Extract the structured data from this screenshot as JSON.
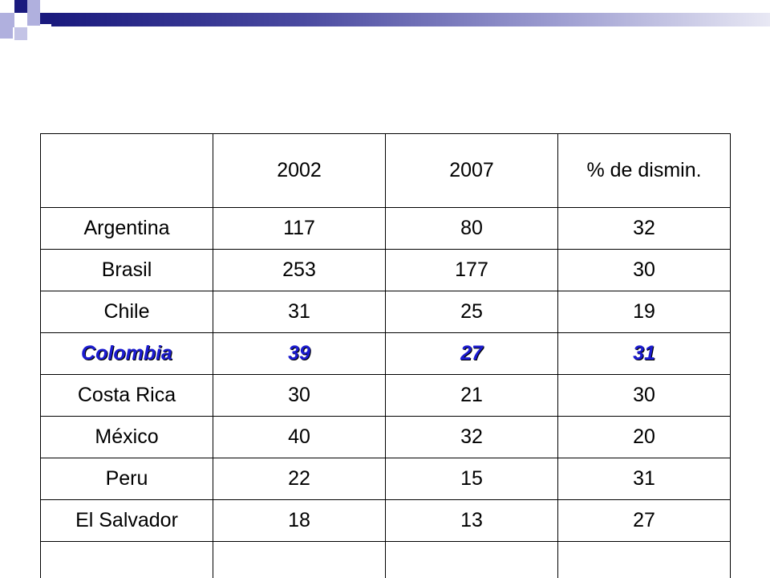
{
  "colors": {
    "highlight_text": "#1b1bd0",
    "deco_navy": "#1a1a7e",
    "deco_lavender": "#b0b0de"
  },
  "table": {
    "headers": [
      "",
      "2002",
      "2007",
      "% de dismin."
    ],
    "rows": [
      {
        "country": "Argentina",
        "y2002": "117",
        "y2007": "80",
        "pct": "32"
      },
      {
        "country": "Brasil",
        "y2002": "253",
        "y2007": "177",
        "pct": "30"
      },
      {
        "country": "Chile",
        "y2002": "31",
        "y2007": "25",
        "pct": "19"
      },
      {
        "country": "Colombia",
        "y2002": "39",
        "y2007": "27",
        "pct": "31",
        "highlighted": true
      },
      {
        "country": "Costa Rica",
        "y2002": "30",
        "y2007": "21",
        "pct": "30"
      },
      {
        "country": "México",
        "y2002": "40",
        "y2007": "32",
        "pct": "20"
      },
      {
        "country": "Peru",
        "y2002": "22",
        "y2007": "15",
        "pct": "31"
      },
      {
        "country": "El Salvador",
        "y2002": "18",
        "y2007": "13",
        "pct": "27"
      },
      {
        "country": "",
        "y2002": "",
        "y2007": "",
        "pct": ""
      }
    ]
  }
}
